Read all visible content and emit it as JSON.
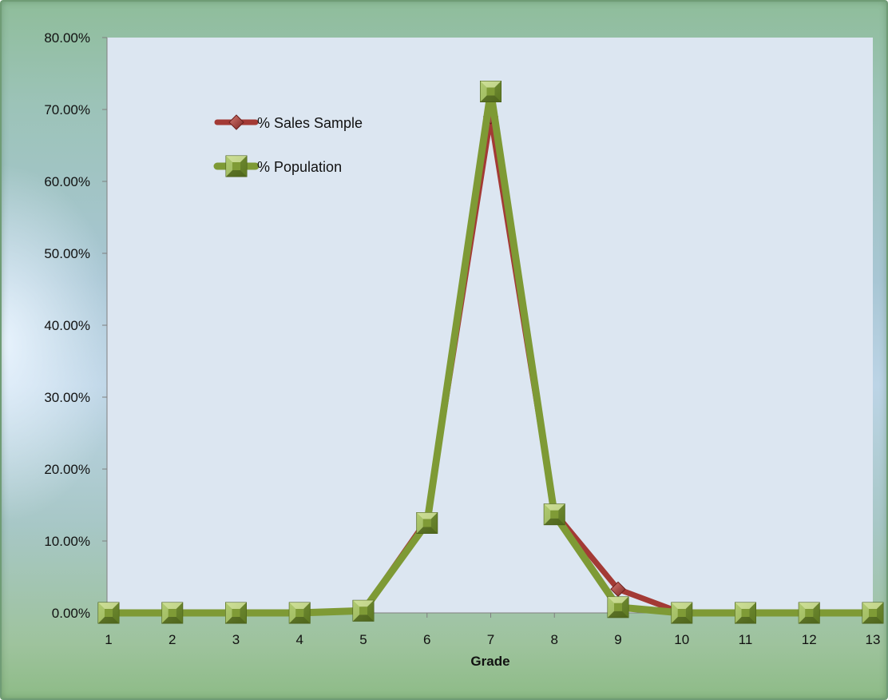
{
  "chart_data": {
    "type": "line",
    "title": "",
    "xlabel": "Grade",
    "ylabel": "",
    "x": [
      1,
      2,
      3,
      4,
      5,
      6,
      7,
      8,
      9,
      10,
      11,
      12,
      13
    ],
    "ylim": [
      0,
      0.8
    ],
    "y_ticks": [
      "0.00%",
      "10.00%",
      "20.00%",
      "30.00%",
      "40.00%",
      "50.00%",
      "60.00%",
      "70.00%",
      "80.00%"
    ],
    "x_ticks": [
      "1",
      "2",
      "3",
      "4",
      "5",
      "6",
      "7",
      "8",
      "9",
      "10",
      "11",
      "12",
      "13"
    ],
    "grid": false,
    "legend_position": "top-left inside plot",
    "series": [
      {
        "name": "% Sales Sample",
        "color": "#a33a35",
        "marker": "diamond",
        "values": [
          0,
          0,
          0,
          0,
          0.003,
          0.13,
          0.69,
          0.14,
          0.033,
          0,
          0,
          0,
          0
        ]
      },
      {
        "name": "% Population",
        "color": "#7e9a35",
        "marker": "square",
        "values": [
          0,
          0,
          0,
          0,
          0.003,
          0.125,
          0.725,
          0.137,
          0.008,
          0,
          0,
          0,
          0
        ]
      }
    ]
  }
}
